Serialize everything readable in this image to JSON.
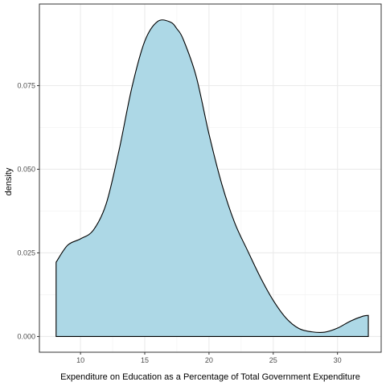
{
  "chart_data": {
    "type": "area",
    "title": "",
    "xlabel": "Expenditure on Education as a Percentage of Total Government Expenditure",
    "ylabel": "density",
    "xlim": [
      6.8,
      33.4
    ],
    "ylim": [
      -0.0047,
      0.0994
    ],
    "x_ticks": [
      10,
      15,
      20,
      25,
      30
    ],
    "y_ticks": [
      0.0,
      0.025,
      0.05,
      0.075
    ],
    "y_tick_labels": [
      "0.000",
      "0.025",
      "0.050",
      "0.075"
    ],
    "grid": true,
    "legend": "none",
    "fill_color": "#add8e6",
    "line_color": "#000000",
    "x": [
      8.1,
      9.0,
      10.0,
      11.0,
      12.0,
      13.0,
      14.0,
      15.0,
      16.0,
      17.0,
      17.5,
      18.0,
      19.0,
      20.0,
      21.0,
      22.0,
      23.0,
      24.0,
      25.0,
      26.0,
      27.0,
      28.0,
      29.0,
      30.0,
      31.0,
      32.0,
      32.4
    ],
    "y": [
      0.0222,
      0.0273,
      0.0292,
      0.0318,
      0.0397,
      0.0557,
      0.0745,
      0.0883,
      0.0942,
      0.094,
      0.092,
      0.0888,
      0.0778,
      0.0605,
      0.0455,
      0.034,
      0.0257,
      0.0177,
      0.0108,
      0.0055,
      0.0024,
      0.0014,
      0.0013,
      0.0025,
      0.0046,
      0.0061,
      0.0063
    ]
  }
}
